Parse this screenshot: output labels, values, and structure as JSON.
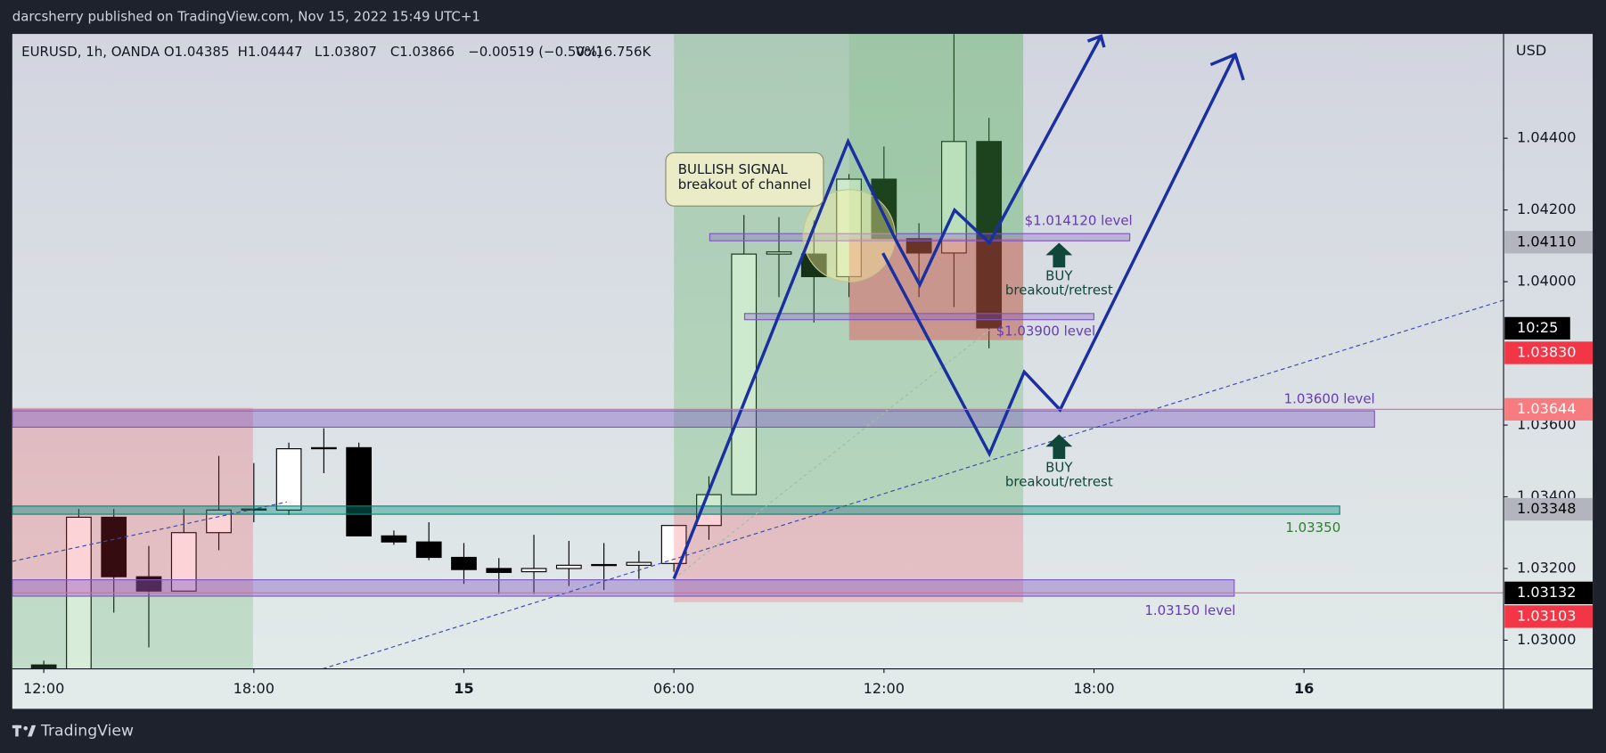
{
  "header": {
    "publisher": "darcsherry published on TradingView.com, Nov 15, 2022 15:49 UTC+1"
  },
  "chart_data": {
    "type": "candlestick",
    "symbol": "EURUSD, 1h, OANDA",
    "ohlc_legend": [
      "O1.04385",
      "H1.04447",
      "L1.03807",
      "C1.03866",
      "−0.00519 (−0.50%)",
      "Vol16.756K"
    ],
    "y_axis_label": "USD",
    "x": [
      0,
      1,
      2,
      3,
      4,
      5,
      6,
      7,
      8,
      9,
      10,
      11,
      12,
      13,
      14,
      15,
      16,
      17,
      18,
      19,
      20,
      21,
      22,
      23,
      24,
      25,
      26,
      27
    ],
    "open": [
      1.02931,
      1.0292,
      1.03343,
      1.03177,
      1.03137,
      1.033,
      1.03363,
      1.03363,
      1.03534,
      1.03537,
      1.03291,
      1.03274,
      1.03231,
      1.032,
      1.03191,
      1.032,
      1.03209,
      1.03209,
      1.03214,
      1.0332,
      1.03406,
      1.04077,
      1.04077,
      1.04014,
      1.04286,
      1.0412,
      1.0408,
      1.04391
    ],
    "high": [
      1.02943,
      1.03366,
      1.03366,
      1.03263,
      1.03366,
      1.03514,
      1.03494,
      1.03551,
      1.03591,
      1.03551,
      1.03306,
      1.03329,
      1.03271,
      1.03229,
      1.03294,
      1.03277,
      1.03271,
      1.03249,
      1.0332,
      1.03457,
      1.04186,
      1.0418,
      1.04171,
      1.043,
      1.04377,
      1.04163,
      1.04691,
      1.04457
    ],
    "low": [
      1.0292,
      1.0292,
      1.03077,
      1.0298,
      1.03137,
      1.03251,
      1.03329,
      1.03349,
      1.03466,
      1.03291,
      1.03266,
      1.03223,
      1.03157,
      1.03129,
      1.03129,
      1.03151,
      1.0314,
      1.03171,
      1.03191,
      1.0328,
      1.03406,
      1.03957,
      1.03886,
      1.03957,
      1.0412,
      1.03957,
      1.03929,
      1.03814
    ],
    "close": [
      1.02923,
      1.03343,
      1.03177,
      1.03137,
      1.033,
      1.03363,
      1.03366,
      1.03534,
      1.03537,
      1.03291,
      1.03274,
      1.03231,
      1.03197,
      1.03189,
      1.032,
      1.03209,
      1.03211,
      1.03217,
      1.0332,
      1.03406,
      1.04077,
      1.04083,
      1.04014,
      1.04286,
      1.0412,
      1.0408,
      1.04391,
      1.03871
    ],
    "up_color": "#ffffff",
    "down_color": "#000000",
    "xlim": [
      -0.9,
      41.7
    ],
    "xticks": [
      {
        "value": 0,
        "label": "12:00"
      },
      {
        "value": 6,
        "label": "18:00"
      },
      {
        "value": 12,
        "label": "15"
      },
      {
        "value": 18,
        "label": "06:00"
      },
      {
        "value": 24,
        "label": "12:00"
      },
      {
        "value": 30,
        "label": "18:00"
      },
      {
        "value": 36,
        "label": "16"
      }
    ],
    "ylim": [
      1.0292,
      1.04691
    ],
    "yticks": [
      {
        "value": 1.03,
        "label": "1.03000"
      },
      {
        "value": 1.032,
        "label": "1.03200"
      },
      {
        "value": 1.034,
        "label": "1.03400"
      },
      {
        "value": 1.036,
        "label": "1.03600"
      },
      {
        "value": 1.04,
        "label": "1.04000"
      },
      {
        "value": 1.042,
        "label": "1.04200"
      },
      {
        "value": 1.044,
        "label": "1.04400"
      }
    ],
    "price_tags": [
      {
        "value": 1.0411,
        "label": "1.04110",
        "color": "#b2b5be",
        "text_color": "#000000"
      },
      {
        "value": 1.0383,
        "label": "1.03830",
        "color": "#f23645",
        "text_color": "#ffffff"
      },
      {
        "value": 1.03644,
        "label": "1.03644",
        "color": "#f77c80",
        "text_color": "#ffffff"
      },
      {
        "value": 1.03348,
        "label": "1.03348",
        "color": "#b2b5be",
        "text_color": "#000000"
      },
      {
        "value": 1.03132,
        "label": "1.03132",
        "color": "#000000",
        "text_color": "#ffffff"
      },
      {
        "value": 1.03103,
        "label": "1.03103",
        "color": "#f23645",
        "text_color": "#ffffff"
      }
    ],
    "countdown": "10:25",
    "annotations": {
      "callout": [
        "BULLISH SIGNAL",
        "breakout of channel"
      ],
      "levels": [
        "$1.014120 level",
        "$1.03900 level",
        "1.03600 level",
        "1.03350",
        "1.03150 level"
      ],
      "buy_signals": [
        [
          "BUY",
          "breakout/retrest"
        ],
        [
          "BUY",
          "breakout/retrest"
        ]
      ]
    }
  },
  "footer": {
    "brand": "TradingView"
  }
}
